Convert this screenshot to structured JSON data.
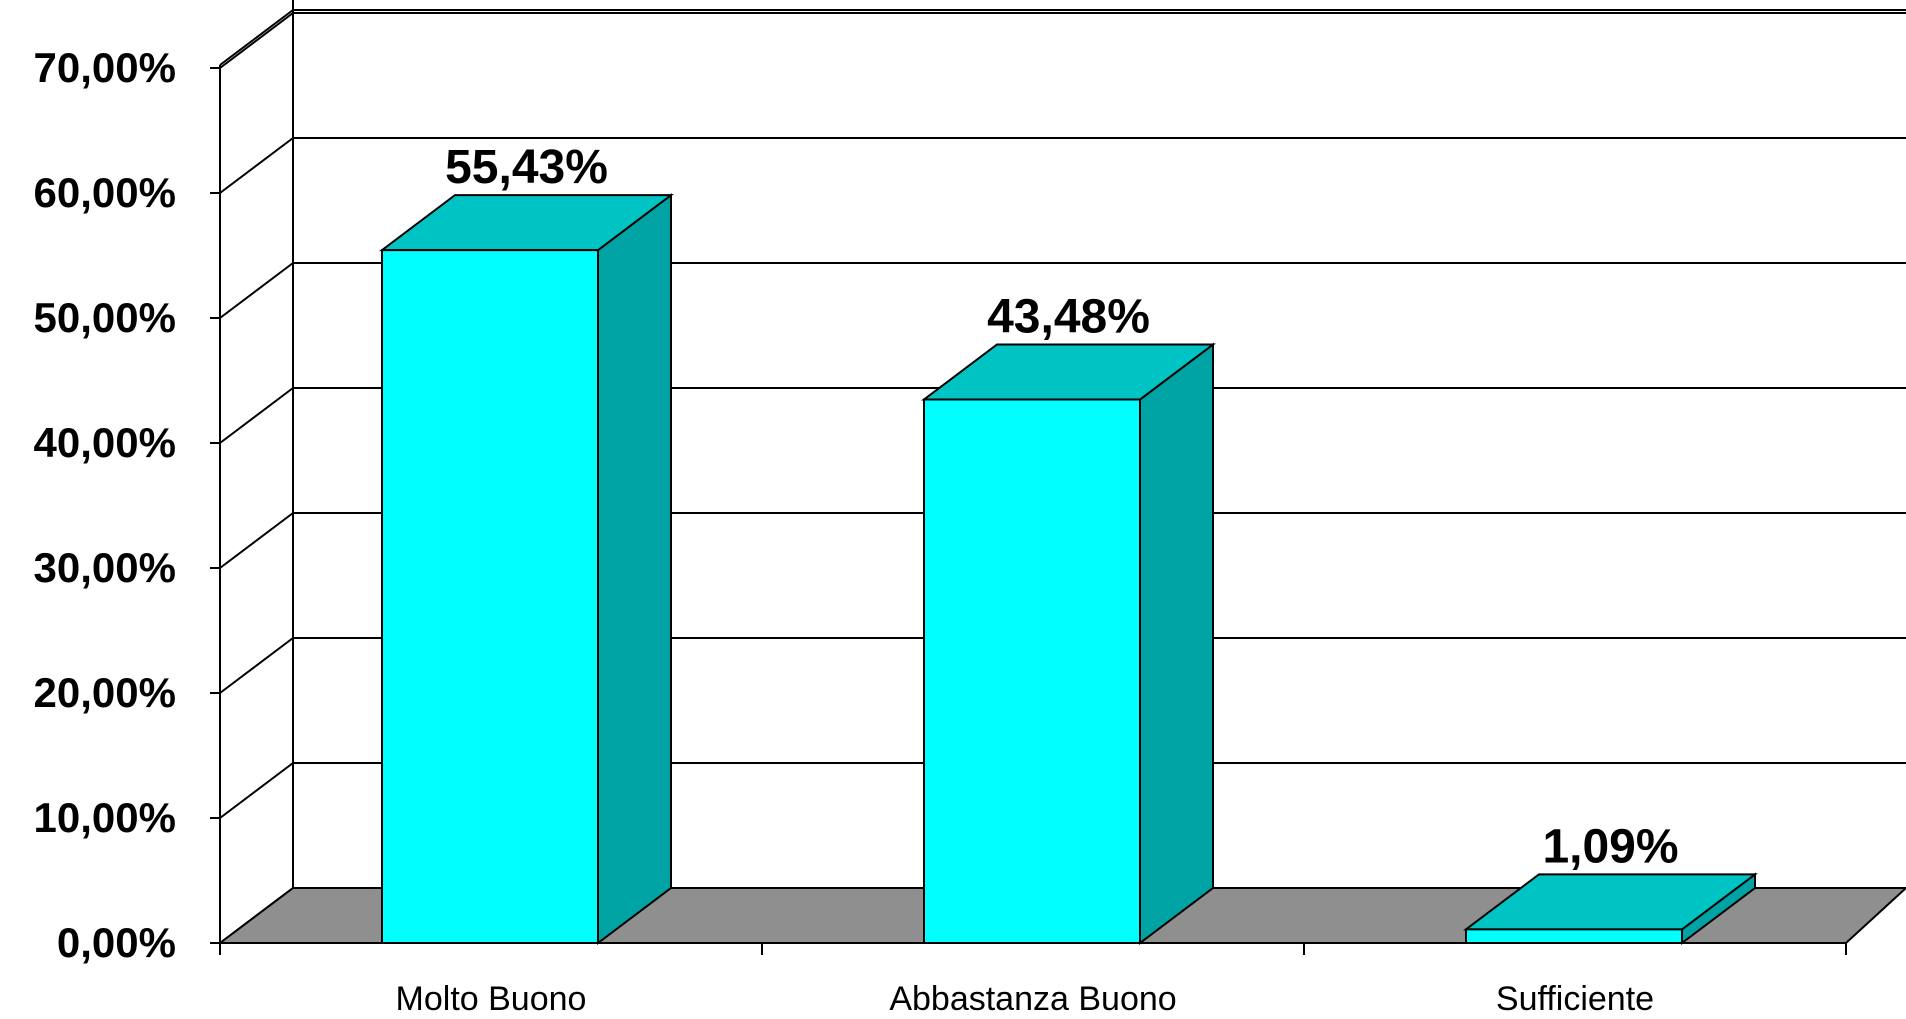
{
  "chart_data": {
    "type": "bar",
    "categories": [
      "Molto Buono",
      "Abbastanza Buono",
      "Sufficiente"
    ],
    "values": [
      55.43,
      43.48,
      1.09
    ],
    "data_labels": [
      "55,43%",
      "43,48%",
      "1,09%"
    ],
    "yticks": [
      0,
      10,
      20,
      30,
      40,
      50,
      60,
      70
    ],
    "ytick_labels": [
      "0,00%",
      "10,00%",
      "20,00%",
      "30,00%",
      "40,00%",
      "50,00%",
      "60,00%",
      "70,00%"
    ],
    "ylim": [
      0,
      70
    ],
    "grid": true,
    "legend": "none",
    "colors": {
      "bar_front": "#00FFFF",
      "bar_top": "#00C4C4",
      "bar_side": "#00A3A3",
      "floor": "#8F8F8F",
      "grid": "#000000"
    }
  }
}
